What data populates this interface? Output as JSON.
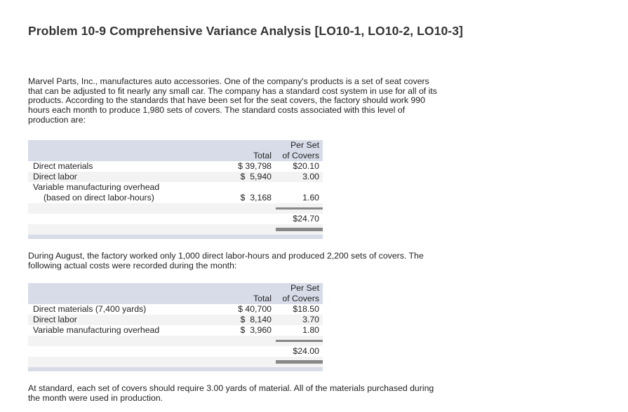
{
  "title": "Problem 10-9 Comprehensive Variance Analysis [LO10-1, LO10-2, LO10-3]",
  "intro_lines": [
    "Marvel Parts, Inc., manufactures auto accessories. One of the company's products is a set of seat covers",
    "that can be adjusted to fit nearly any small car. The company has a standard cost system in use for all of its",
    "products. According to the standards that have been set for the seat covers, the factory should work 990",
    "hours each month to produce 1,980 sets of covers. The standard costs associated with this level of",
    "production are:"
  ],
  "standard_table": {
    "header_total": "Total",
    "header_per_set": [
      "Per Set",
      "of Covers"
    ],
    "rows": [
      {
        "label": "Direct materials",
        "total": "$ 39,798",
        "per_set": "$20.10"
      },
      {
        "label": "Direct labor",
        "total": "$  5,940",
        "per_set": "3.00"
      },
      {
        "label": "Variable manufacturing overhead",
        "label2": "(based on direct labor-hours)",
        "total": "$  3,168",
        "per_set": "1.60"
      }
    ],
    "total_per_set": "$24.70"
  },
  "middle_lines": [
    "During August, the factory worked only 1,000 direct labor-hours and produced 2,200 sets of covers. The",
    "following actual costs were recorded during the month:"
  ],
  "actual_table": {
    "header_total": "Total",
    "header_per_set": [
      "Per Set",
      "of Covers"
    ],
    "rows": [
      {
        "label": "Direct materials (7,400 yards)",
        "total": "$ 40,700",
        "per_set": "$18.50"
      },
      {
        "label": "Direct labor",
        "total": "$  8,140",
        "per_set": "3.70"
      },
      {
        "label": "Variable manufacturing overhead",
        "total": "$  3,960",
        "per_set": "1.80"
      }
    ],
    "total_per_set": "$24.00"
  },
  "closing_lines": [
    "At standard, each set of covers should require 3.00 yards of material. All of the materials purchased during",
    "the month were used in production."
  ],
  "colors": {
    "header_bg": "#d8dce8",
    "stripe": "#f3f3f3",
    "rule": "#888888"
  }
}
